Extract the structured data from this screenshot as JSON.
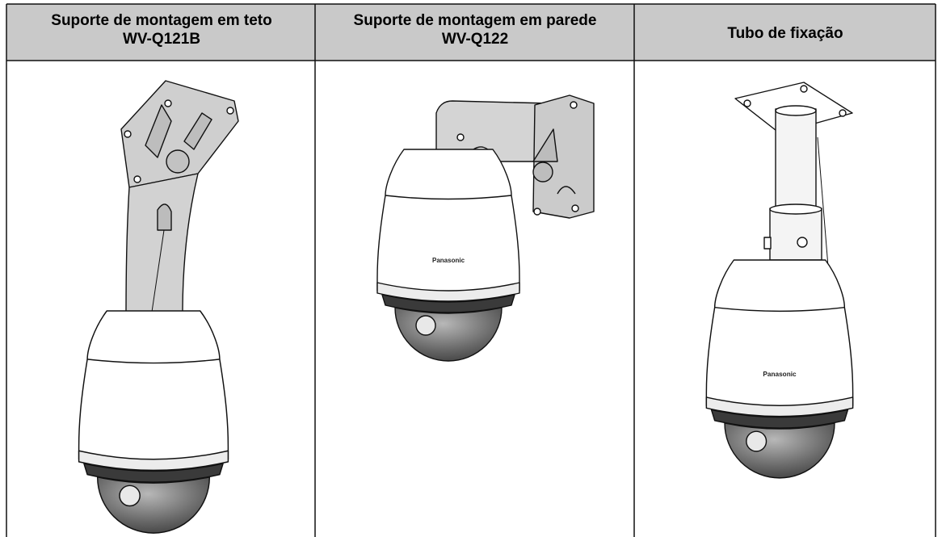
{
  "table": {
    "header": [
      [
        "Suporte de montagem em teto",
        "WV-Q121B"
      ],
      [
        "Suporte de montagem em parede",
        "WV-Q122"
      ],
      [
        "Tubo de fixação"
      ]
    ]
  },
  "illustrations": {
    "brand_labels": [
      "Panasonic",
      "Panasonic"
    ]
  }
}
